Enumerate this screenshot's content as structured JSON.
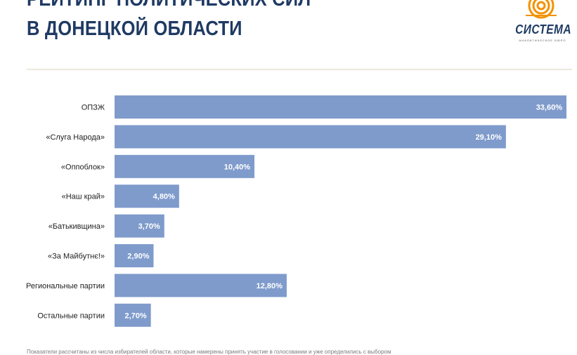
{
  "header": {
    "title_line1": "РЕЙТИНГ ПОЛИТИЧЕСКИХ СИЛ",
    "title_line2": "В ДОНЕЦКОЙ ОБЛАСТИ"
  },
  "logo": {
    "name": "СИСТЕМА",
    "subtitle": "АНАЛИТИЧЕСКОЕ БЮРО",
    "icon": "sun-rings-icon",
    "color": "#f39200"
  },
  "colors": {
    "bar": "#7f9bcc",
    "title": "#1f3a63",
    "label_text": "#222222",
    "value_text": "#ffffff"
  },
  "chart_data": {
    "type": "bar",
    "orientation": "horizontal",
    "categories": [
      "ОПЗЖ",
      "«Слуга Народа»",
      "«Оппоблок»",
      "«Наш край»",
      "«Батькивщина»",
      "«За Майбутнє!»",
      "Региональные партии",
      "Остальные партии"
    ],
    "values": [
      33.6,
      29.1,
      10.4,
      4.8,
      3.7,
      2.9,
      12.8,
      2.7
    ],
    "value_labels": [
      "33,60%",
      "29,10%",
      "10,40%",
      "4,80%",
      "3,70%",
      "2,90%",
      "12,80%",
      "2,70%"
    ],
    "title": "РЕЙТИНГ ПОЛИТИЧЕСКИХ СИЛ В ДОНЕЦКОЙ ОБЛАСТИ",
    "xlim": [
      0,
      33.6
    ],
    "grid": false,
    "legend": "none"
  },
  "footnote": "Показатели рассчитаны из числа избирателей области, которые намерены принять участие в голосовании и уже определились с выбором"
}
